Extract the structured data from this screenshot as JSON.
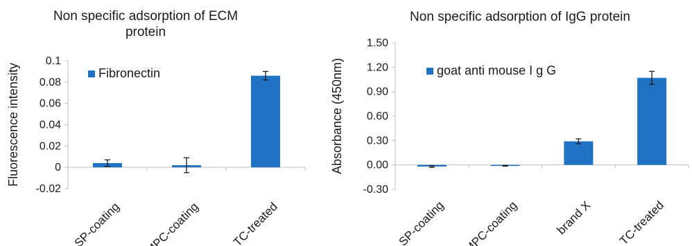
{
  "chart_data": [
    {
      "type": "bar",
      "title": "Non specific adsorption of ECM protein",
      "title_lines": [
        "Non specific adsorption of ECM",
        "protein"
      ],
      "xlabel": "",
      "ylabel": "Fluorescence intensity",
      "categories": [
        "SP-coating",
        "MPC-coating",
        "TC-treated"
      ],
      "series": [
        {
          "name": "Fibronectin",
          "values": [
            0.004,
            0.002,
            0.086
          ],
          "errors": [
            0.003,
            0.007,
            0.004
          ]
        }
      ],
      "ylim": [
        -0.02,
        0.1
      ],
      "yticks": [
        -0.02,
        0,
        0.02,
        0.04,
        0.06,
        0.08,
        0.1
      ],
      "ytick_labels": [
        "-0.02",
        "0",
        "0.02",
        "0.04",
        "0.06",
        "0.08",
        "0.1"
      ],
      "grid": false,
      "legend": "top-left",
      "color": "#1f72c4"
    },
    {
      "type": "bar",
      "title": "Non specific adsorption of IgG protein",
      "xlabel": "",
      "ylabel": "Absorbance (450nm)",
      "categories": [
        "SP-coating",
        "MPC-coating",
        "brand X",
        "TC-treated"
      ],
      "series": [
        {
          "name": "goat anti mouse I g G",
          "values": [
            -0.02,
            -0.01,
            0.29,
            1.07
          ],
          "errors": [
            0.01,
            0.005,
            0.03,
            0.08
          ]
        }
      ],
      "ylim": [
        -0.3,
        1.5
      ],
      "yticks": [
        -0.3,
        0,
        0.3,
        0.6,
        0.9,
        1.2,
        1.5
      ],
      "ytick_labels": [
        "-0.30",
        "0.00",
        "0.30",
        "0.60",
        "0.90",
        "1.20",
        "1.50"
      ],
      "grid": false,
      "legend": "top-left",
      "color": "#1f72c4"
    }
  ]
}
